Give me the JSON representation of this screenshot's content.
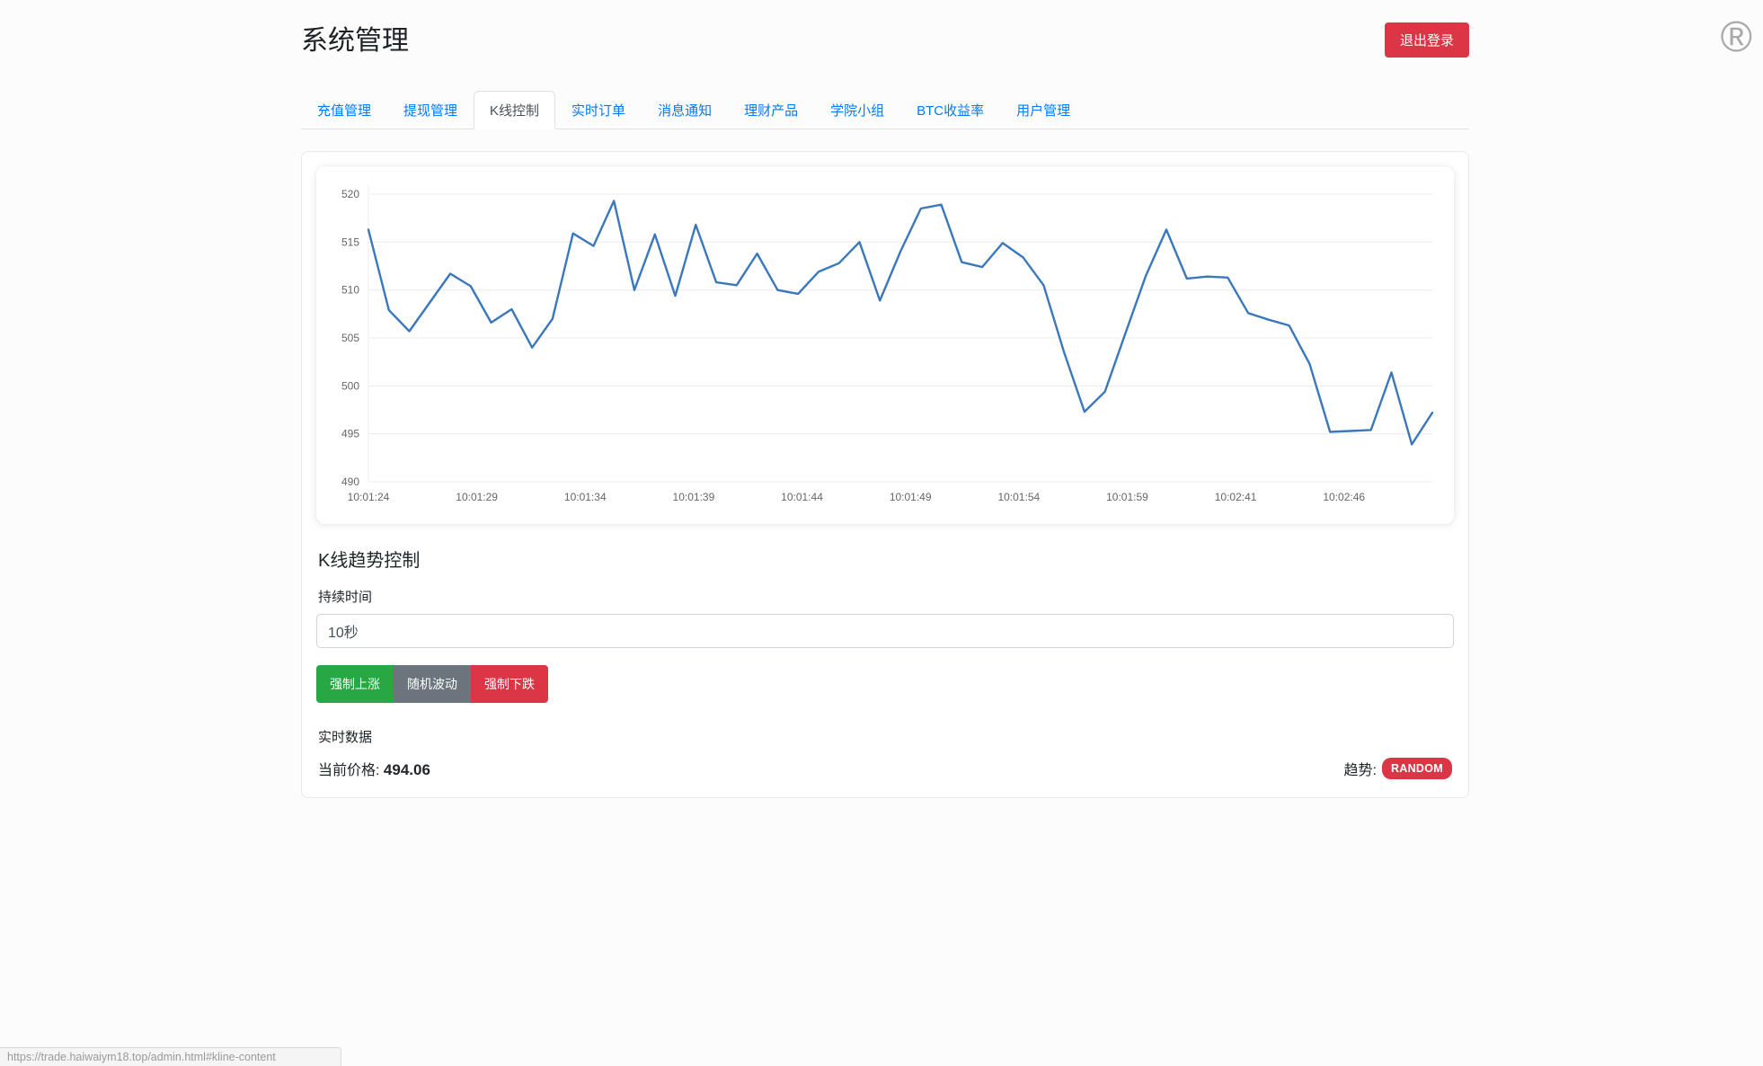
{
  "page": {
    "title": "系统管理",
    "logout_label": "退出登录",
    "status_url": "https://trade.haiwaiym18.top/admin.html#kline-content",
    "reg_glyph": "®"
  },
  "tabs": [
    {
      "id": "recharge",
      "label": "充值管理",
      "active": false
    },
    {
      "id": "withdraw",
      "label": "提现管理",
      "active": false
    },
    {
      "id": "kline",
      "label": "K线控制",
      "active": true
    },
    {
      "id": "orders",
      "label": "实时订单",
      "active": false
    },
    {
      "id": "notify",
      "label": "消息通知",
      "active": false
    },
    {
      "id": "wealth",
      "label": "理财产品",
      "active": false
    },
    {
      "id": "academy",
      "label": "学院小组",
      "active": false
    },
    {
      "id": "btc",
      "label": "BTC收益率",
      "active": false
    },
    {
      "id": "users",
      "label": "用户管理",
      "active": false
    }
  ],
  "chart_data": {
    "type": "line",
    "title": "",
    "xlabel": "",
    "ylabel": "",
    "ylim": [
      490,
      520
    ],
    "y_ticks": [
      520,
      515,
      510,
      505,
      500,
      495,
      490
    ],
    "x_labels": [
      "10:01:24",
      "10:01:29",
      "10:01:34",
      "10:01:39",
      "10:01:44",
      "10:01:49",
      "10:01:54",
      "10:01:59",
      "10:02:41",
      "10:02:46"
    ],
    "last_label_fraction": 0.917,
    "values": [
      516.3,
      507.9,
      505.7,
      508.7,
      511.7,
      510.4,
      506.6,
      508.0,
      504.0,
      507.0,
      515.9,
      514.6,
      519.3,
      510.0,
      515.8,
      509.4,
      516.8,
      510.8,
      510.5,
      513.8,
      510.0,
      509.6,
      511.9,
      512.8,
      515.0,
      508.9,
      514.0,
      518.5,
      518.9,
      512.9,
      512.4,
      514.9,
      513.4,
      510.5,
      503.5,
      497.3,
      499.4,
      505.5,
      511.5,
      516.3,
      511.2,
      511.4,
      511.3,
      507.6,
      506.9,
      506.3,
      502.3,
      495.2,
      495.3,
      495.4,
      501.4,
      493.9,
      497.2
    ],
    "line_color": "#3a78bd",
    "grid_color": "#ececec",
    "tick_color": "#666666",
    "grid": true,
    "legend": "none"
  },
  "controls": {
    "heading": "K线趋势控制",
    "duration_label": "持续时间",
    "duration_value": "10秒",
    "buttons": [
      {
        "id": "force-up",
        "label": "强制上涨",
        "color": "#28a745"
      },
      {
        "id": "random",
        "label": "随机波动",
        "color": "#6c757d"
      },
      {
        "id": "force-down",
        "label": "强制下跌",
        "color": "#dc3545"
      }
    ]
  },
  "realtime": {
    "heading": "实时数据",
    "price_label": "当前价格:",
    "price_value": "494.06",
    "trend_label": "趋势:",
    "trend_badge": "RANDOM",
    "badge_color": "#dc3545"
  }
}
